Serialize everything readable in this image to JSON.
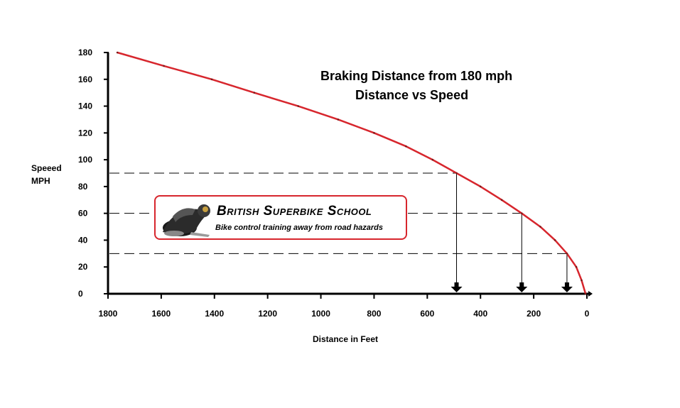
{
  "chart_data": {
    "type": "line",
    "title": "Braking Distance from 180 mph",
    "subtitle": "Distance vs Speed",
    "xlabel": "Distance in Feet",
    "ylabel_line1": "Speeed",
    "ylabel_line2": "MPH",
    "xlim": [
      1800,
      0
    ],
    "ylim": [
      0,
      180
    ],
    "x_ticks": [
      1800,
      1600,
      1400,
      1200,
      1000,
      800,
      600,
      400,
      200,
      0
    ],
    "y_ticks": [
      180,
      160,
      140,
      120,
      100,
      80,
      60,
      40,
      20,
      0
    ],
    "series": [
      {
        "name": "Braking distance",
        "color": "#d7262d",
        "points": [
          [
            1765,
            180
          ],
          [
            1590,
            170
          ],
          [
            1410,
            160
          ],
          [
            1250,
            150
          ],
          [
            1085,
            140
          ],
          [
            935,
            130
          ],
          [
            800,
            120
          ],
          [
            680,
            110
          ],
          [
            580,
            100
          ],
          [
            490,
            90
          ],
          [
            400,
            80
          ],
          [
            320,
            70
          ],
          [
            245,
            60
          ],
          [
            175,
            50
          ],
          [
            120,
            40
          ],
          [
            75,
            30
          ],
          [
            40,
            20
          ],
          [
            20,
            10
          ],
          [
            5,
            0
          ]
        ]
      }
    ],
    "reference_lines": [
      {
        "speed": 90,
        "distance": 490
      },
      {
        "speed": 60,
        "distance": 245
      },
      {
        "speed": 30,
        "distance": 75
      }
    ]
  },
  "logo": {
    "name_first": "British",
    "name_second": "Superbike School",
    "tagline": "Bike control training away from road hazards"
  },
  "colors": {
    "curve": "#d7262d",
    "logo_border": "#d7262d"
  }
}
